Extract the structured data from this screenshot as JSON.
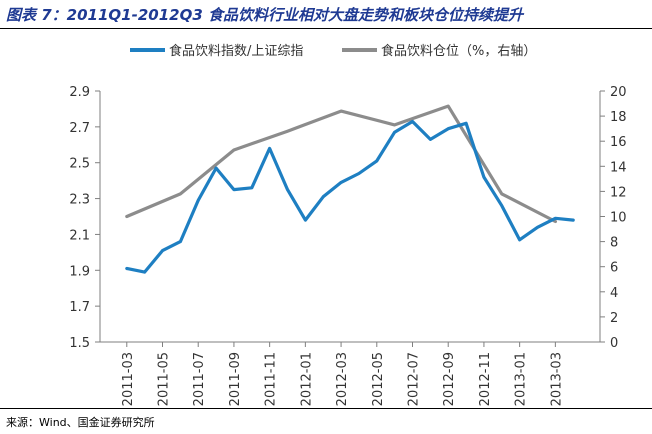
{
  "figure_title": "图表 7：2011Q1-2012Q3 食品饮料行业相对大盘走势和板块仓位持续提升",
  "source": "来源：Wind、国金证券研究所",
  "chart_data": {
    "type": "line",
    "categories": [
      "2011-03",
      "2011-05",
      "2011-07",
      "2011-09",
      "2011-11",
      "2012-01",
      "2012-03",
      "2012-05",
      "2012-07",
      "2012-09",
      "2012-11",
      "2013-01",
      "2013-03"
    ],
    "left_axis": {
      "ticks": [
        "2.9",
        "2.7",
        "2.5",
        "2.3",
        "2.1",
        "1.9",
        "1.7",
        "1.5"
      ],
      "min": 1.5,
      "max": 2.9
    },
    "right_axis": {
      "ticks": [
        "20",
        "18",
        "16",
        "14",
        "12",
        "10",
        "8",
        "6",
        "4",
        "2",
        "0"
      ],
      "min": 0,
      "max": 20
    },
    "series": [
      {
        "name": "食品饮料指数/上证综指",
        "axis": "left",
        "color": "#1e7fc2",
        "x": [
          "2011-03",
          "2011-04",
          "2011-05",
          "2011-06",
          "2011-07",
          "2011-08",
          "2011-09",
          "2011-10",
          "2011-11",
          "2011-12",
          "2012-01",
          "2012-02",
          "2012-03",
          "2012-04",
          "2012-05",
          "2012-06",
          "2012-07",
          "2012-08",
          "2012-09",
          "2012-10",
          "2012-11",
          "2012-12",
          "2013-01",
          "2013-02",
          "2013-03",
          "2013-04"
        ],
        "values": [
          1.91,
          1.89,
          2.01,
          2.06,
          2.29,
          2.47,
          2.35,
          2.36,
          2.58,
          2.35,
          2.18,
          2.31,
          2.39,
          2.44,
          2.51,
          2.67,
          2.73,
          2.63,
          2.69,
          2.72,
          2.42,
          2.26,
          2.07,
          2.14,
          2.19,
          2.18
        ]
      },
      {
        "name": "食品饮料仓位（%，右轴）",
        "axis": "right",
        "color": "#8c8c8c",
        "x": [
          "2011-03",
          "2011-06",
          "2011-09",
          "2011-12",
          "2012-03",
          "2012-06",
          "2012-09",
          "2012-12",
          "2013-03"
        ],
        "values": [
          10.0,
          11.8,
          15.3,
          16.8,
          18.4,
          17.3,
          18.8,
          11.8,
          9.6
        ]
      }
    ]
  }
}
